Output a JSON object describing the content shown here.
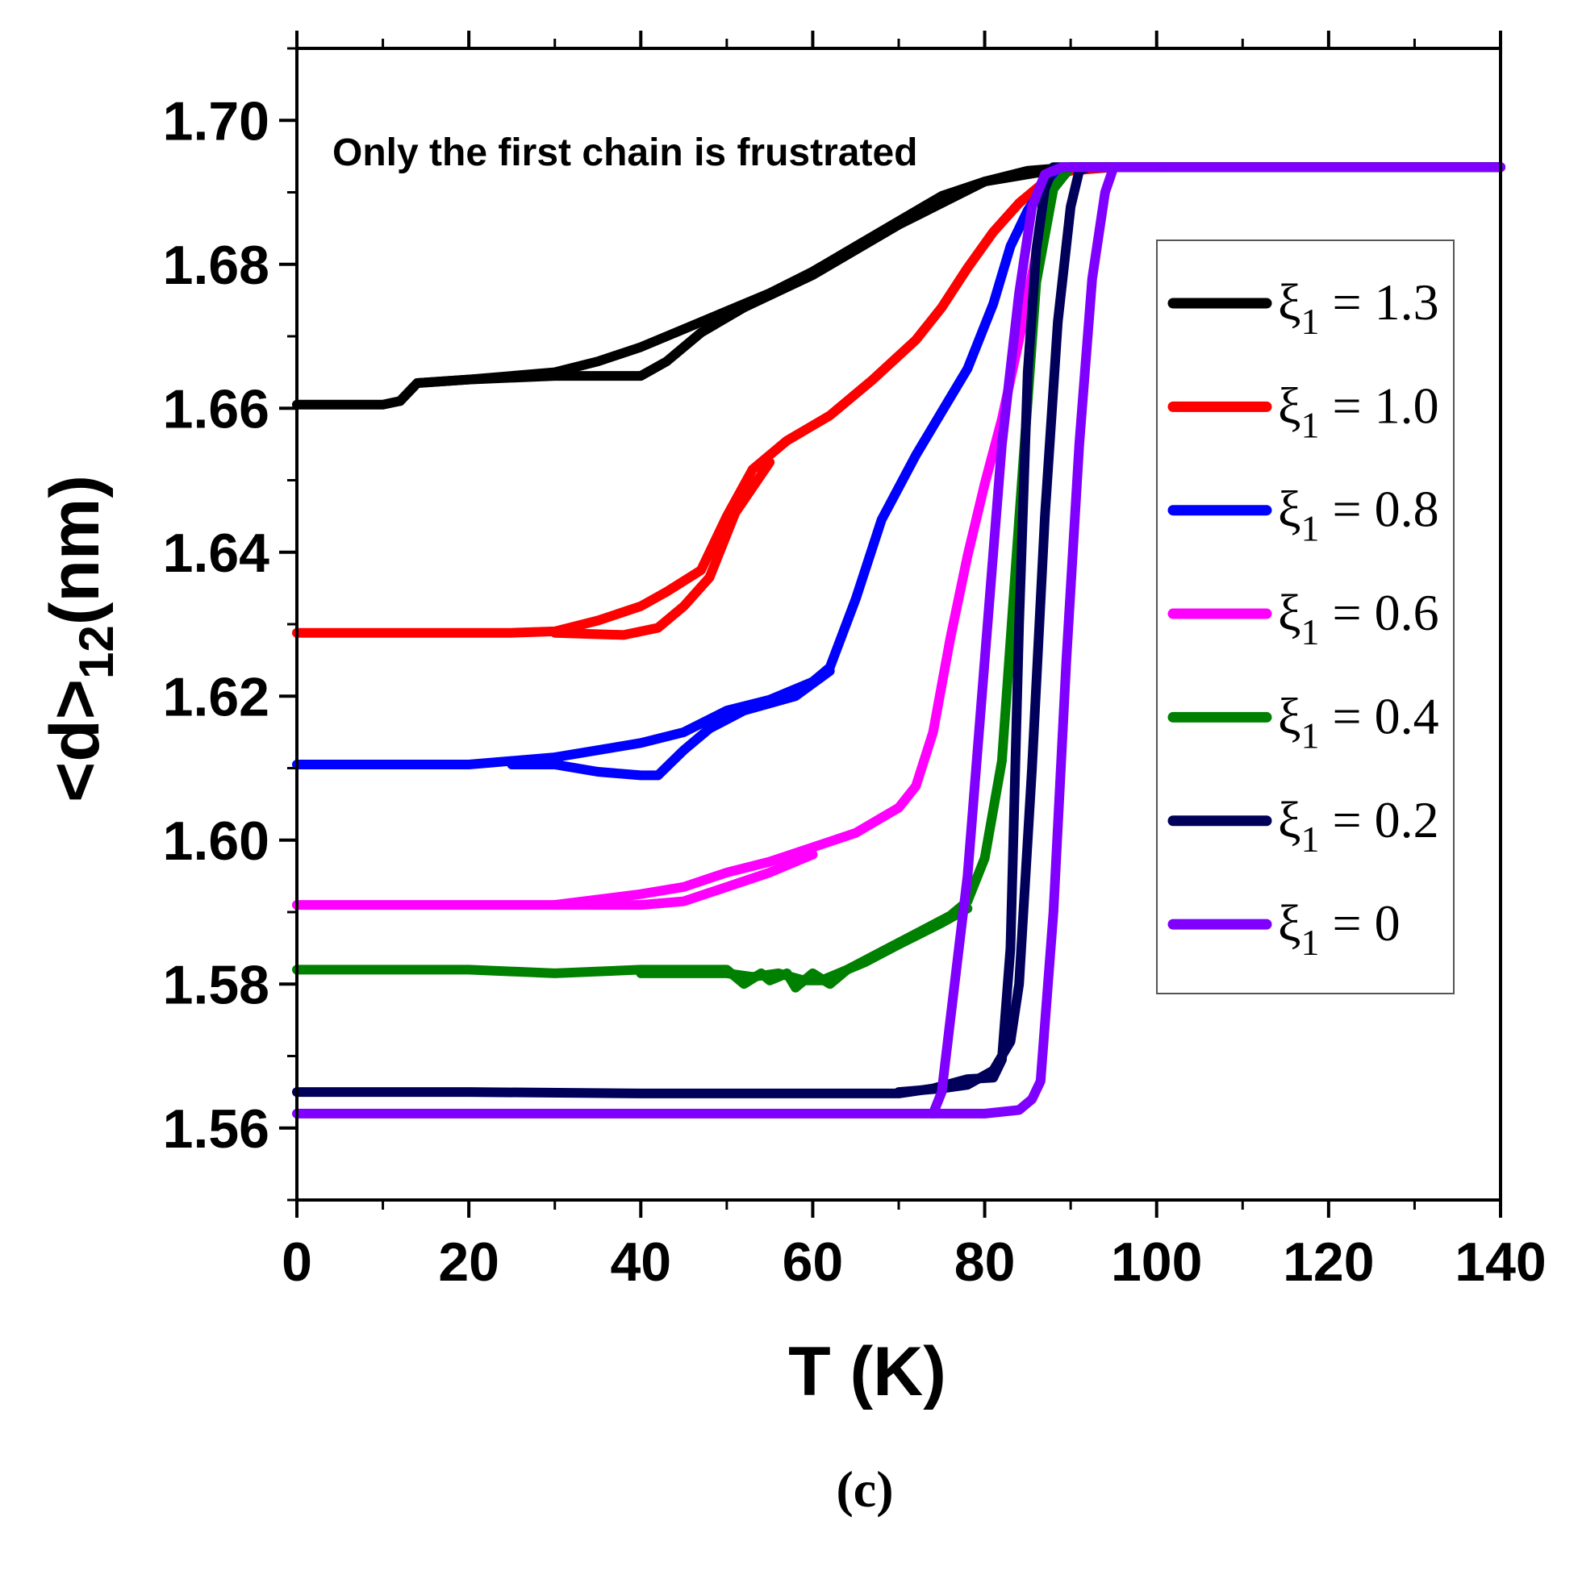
{
  "chart_data": {
    "type": "line",
    "title": "",
    "annotation": "Only the first chain is frustrated",
    "xlabel": "T (K)",
    "ylabel": {
      "main": "<d>",
      "sub": "12",
      "unit": "(nm)"
    },
    "xlim": [
      0,
      140
    ],
    "ylim": [
      1.55,
      1.71
    ],
    "x_ticks": [
      0,
      20,
      40,
      60,
      80,
      100,
      120,
      140
    ],
    "x_tick_labels": [
      "0",
      "20",
      "40",
      "60",
      "80",
      "100",
      "120",
      "140"
    ],
    "y_ticks": [
      1.56,
      1.58,
      1.6,
      1.62,
      1.64,
      1.66,
      1.68,
      1.7
    ],
    "y_tick_labels": [
      "1.56",
      "1.58",
      "1.60",
      "1.62",
      "1.64",
      "1.66",
      "1.68",
      "1.70"
    ],
    "grid": false,
    "legend_position": "right",
    "caption": "(c)",
    "series": [
      {
        "name": "ξ1 = 1.3",
        "legend": {
          "symbol": "ξ",
          "sub": "1",
          "rest": " = 1.3"
        },
        "color": "#000000",
        "branches": [
          [
            [
              0,
              1.6605
            ],
            [
              10,
              1.6605
            ],
            [
              12,
              1.661
            ],
            [
              14,
              1.6635
            ],
            [
              20,
              1.664
            ],
            [
              30,
              1.665
            ],
            [
              35,
              1.6665
            ],
            [
              40,
              1.6685
            ],
            [
              45,
              1.671
            ],
            [
              50,
              1.6735
            ],
            [
              55,
              1.676
            ],
            [
              60,
              1.679
            ],
            [
              65,
              1.6825
            ],
            [
              70,
              1.686
            ],
            [
              75,
              1.6895
            ],
            [
              80,
              1.6915
            ],
            [
              85,
              1.693
            ],
            [
              90,
              1.6935
            ],
            [
              100,
              1.6935
            ],
            [
              140,
              1.6935
            ]
          ],
          [
            [
              12,
              1.661
            ],
            [
              14,
              1.6635
            ],
            [
              20,
              1.664
            ],
            [
              30,
              1.6645
            ],
            [
              35,
              1.6645
            ],
            [
              40,
              1.6645
            ],
            [
              43,
              1.6665
            ],
            [
              47,
              1.6705
            ],
            [
              52,
              1.674
            ],
            [
              60,
              1.6785
            ],
            [
              70,
              1.6855
            ],
            [
              80,
              1.6915
            ],
            [
              90,
              1.6935
            ]
          ]
        ]
      },
      {
        "name": "ξ1 = 1.0",
        "legend": {
          "symbol": "ξ",
          "sub": "1",
          "rest": " = 1.0"
        },
        "color": "#ff0000",
        "branches": [
          [
            [
              0,
              1.6288
            ],
            [
              25,
              1.6288
            ],
            [
              30,
              1.629
            ],
            [
              35,
              1.6305
            ],
            [
              40,
              1.6325
            ],
            [
              43,
              1.6345
            ],
            [
              47,
              1.6375
            ],
            [
              50,
              1.645
            ],
            [
              53,
              1.6515
            ],
            [
              57,
              1.6555
            ],
            [
              62,
              1.659
            ],
            [
              67,
              1.664
            ],
            [
              72,
              1.6695
            ],
            [
              75,
              1.674
            ],
            [
              78,
              1.6795
            ],
            [
              81,
              1.6845
            ],
            [
              84,
              1.6885
            ],
            [
              87,
              1.6915
            ],
            [
              90,
              1.693
            ],
            [
              95,
              1.6935
            ],
            [
              140,
              1.6935
            ]
          ],
          [
            [
              30,
              1.6288
            ],
            [
              38,
              1.6285
            ],
            [
              42,
              1.6295
            ],
            [
              45,
              1.6325
            ],
            [
              48,
              1.6365
            ],
            [
              51,
              1.6455
            ],
            [
              55,
              1.6525
            ]
          ]
        ]
      },
      {
        "name": "ξ1 = 0.8",
        "legend": {
          "symbol": "ξ",
          "sub": "1",
          "rest": " = 0.8"
        },
        "color": "#0000ff",
        "branches": [
          [
            [
              0,
              1.6105
            ],
            [
              20,
              1.6105
            ],
            [
              30,
              1.6115
            ],
            [
              40,
              1.6135
            ],
            [
              45,
              1.615
            ],
            [
              50,
              1.618
            ],
            [
              55,
              1.6195
            ],
            [
              60,
              1.622
            ],
            [
              62,
              1.624
            ],
            [
              65,
              1.6335
            ],
            [
              68,
              1.6445
            ],
            [
              72,
              1.6535
            ],
            [
              75,
              1.6595
            ],
            [
              78,
              1.6655
            ],
            [
              81,
              1.6745
            ],
            [
              83,
              1.6825
            ],
            [
              85,
              1.6875
            ],
            [
              87,
              1.691
            ],
            [
              90,
              1.6935
            ],
            [
              140,
              1.6935
            ]
          ],
          [
            [
              25,
              1.6105
            ],
            [
              30,
              1.6105
            ],
            [
              35,
              1.6095
            ],
            [
              40,
              1.609
            ],
            [
              42,
              1.609
            ],
            [
              45,
              1.6125
            ],
            [
              48,
              1.6155
            ],
            [
              52,
              1.618
            ],
            [
              58,
              1.62
            ],
            [
              62,
              1.6235
            ]
          ]
        ]
      },
      {
        "name": "ξ1 = 0.6",
        "legend": {
          "symbol": "ξ",
          "sub": "1",
          "rest": " = 0.6"
        },
        "color": "#ff00ff",
        "branches": [
          [
            [
              0,
              1.591
            ],
            [
              30,
              1.591
            ],
            [
              40,
              1.5925
            ],
            [
              45,
              1.5935
            ],
            [
              50,
              1.5955
            ],
            [
              55,
              1.597
            ],
            [
              60,
              1.599
            ],
            [
              65,
              1.601
            ],
            [
              70,
              1.6045
            ],
            [
              72,
              1.6075
            ],
            [
              74,
              1.615
            ],
            [
              76,
              1.628
            ],
            [
              78,
              1.6395
            ],
            [
              80,
              1.6495
            ],
            [
              82,
              1.6585
            ],
            [
              84,
              1.6695
            ],
            [
              86,
              1.6815
            ],
            [
              88,
              1.6905
            ],
            [
              90,
              1.6935
            ],
            [
              140,
              1.6935
            ]
          ],
          [
            [
              30,
              1.591
            ],
            [
              40,
              1.591
            ],
            [
              45,
              1.5915
            ],
            [
              50,
              1.5935
            ],
            [
              55,
              1.5955
            ],
            [
              60,
              1.598
            ]
          ]
        ]
      },
      {
        "name": "ξ1 = 0.4",
        "legend": {
          "symbol": "ξ",
          "sub": "1",
          "rest": " = 0.4"
        },
        "color": "#008000",
        "branches": [
          [
            [
              0,
              1.582
            ],
            [
              20,
              1.582
            ],
            [
              30,
              1.5815
            ],
            [
              40,
              1.582
            ],
            [
              50,
              1.582
            ],
            [
              52,
              1.58
            ],
            [
              54,
              1.5815
            ],
            [
              55,
              1.5805
            ],
            [
              57,
              1.5815
            ],
            [
              58,
              1.5795
            ],
            [
              60,
              1.5815
            ],
            [
              62,
              1.58
            ],
            [
              64,
              1.582
            ],
            [
              68,
              1.5845
            ],
            [
              72,
              1.587
            ],
            [
              76,
              1.5895
            ],
            [
              78,
              1.5915
            ],
            [
              80,
              1.5975
            ],
            [
              82,
              1.611
            ],
            [
              84,
              1.6445
            ],
            [
              86,
              1.6775
            ],
            [
              88,
              1.6905
            ],
            [
              90,
              1.6935
            ],
            [
              140,
              1.6935
            ]
          ],
          [
            [
              40,
              1.5815
            ],
            [
              50,
              1.5815
            ],
            [
              53,
              1.581
            ],
            [
              56,
              1.5815
            ],
            [
              59,
              1.5805
            ],
            [
              61,
              1.5805
            ],
            [
              63,
              1.5815
            ],
            [
              66,
              1.583
            ],
            [
              70,
              1.5855
            ],
            [
              75,
              1.5885
            ],
            [
              78,
              1.5905
            ]
          ]
        ]
      },
      {
        "name": "ξ1 = 0.2",
        "legend": {
          "symbol": "ξ",
          "sub": "1",
          "rest": " = 0.2"
        },
        "color": "#00005a",
        "branches": [
          [
            [
              0,
              1.565
            ],
            [
              20,
              1.565
            ],
            [
              40,
              1.5648
            ],
            [
              60,
              1.5648
            ],
            [
              70,
              1.5648
            ],
            [
              74,
              1.5655
            ],
            [
              78,
              1.5668
            ],
            [
              81,
              1.567
            ],
            [
              82,
              1.5695
            ],
            [
              83,
              1.585
            ],
            [
              84,
              1.63
            ],
            [
              85,
              1.665
            ],
            [
              86,
              1.682
            ],
            [
              87,
              1.6905
            ],
            [
              88,
              1.6935
            ],
            [
              140,
              1.6935
            ]
          ],
          [
            [
              70,
              1.565
            ],
            [
              75,
              1.5655
            ],
            [
              78,
              1.566
            ],
            [
              81,
              1.568
            ],
            [
              83,
              1.572
            ],
            [
              84,
              1.58
            ],
            [
              85.5,
              1.61
            ],
            [
              87,
              1.645
            ],
            [
              88.5,
              1.672
            ],
            [
              90,
              1.688
            ],
            [
              91,
              1.693
            ],
            [
              92,
              1.6935
            ]
          ]
        ]
      },
      {
        "name": "ξ1 = 0",
        "legend": {
          "symbol": "ξ",
          "sub": "1",
          "rest": " = 0"
        },
        "color": "#7f00ff",
        "branches": [
          [
            [
              0,
              1.562
            ],
            [
              50,
              1.562
            ],
            [
              74,
              1.562
            ],
            [
              75,
              1.565
            ],
            [
              76,
              1.575
            ],
            [
              78,
              1.595
            ],
            [
              80,
              1.625
            ],
            [
              82,
              1.655
            ],
            [
              84,
              1.676
            ],
            [
              85.5,
              1.688
            ],
            [
              87,
              1.6925
            ],
            [
              89,
              1.6935
            ],
            [
              140,
              1.6935
            ]
          ],
          [
            [
              74,
              1.562
            ],
            [
              80,
              1.562
            ],
            [
              84,
              1.5625
            ],
            [
              85.5,
              1.564
            ],
            [
              86.5,
              1.5665
            ],
            [
              88,
              1.59
            ],
            [
              89.5,
              1.625
            ],
            [
              91,
              1.655
            ],
            [
              92.5,
              1.678
            ],
            [
              94,
              1.69
            ],
            [
              95,
              1.6935
            ],
            [
              100,
              1.6935
            ]
          ]
        ]
      }
    ]
  }
}
